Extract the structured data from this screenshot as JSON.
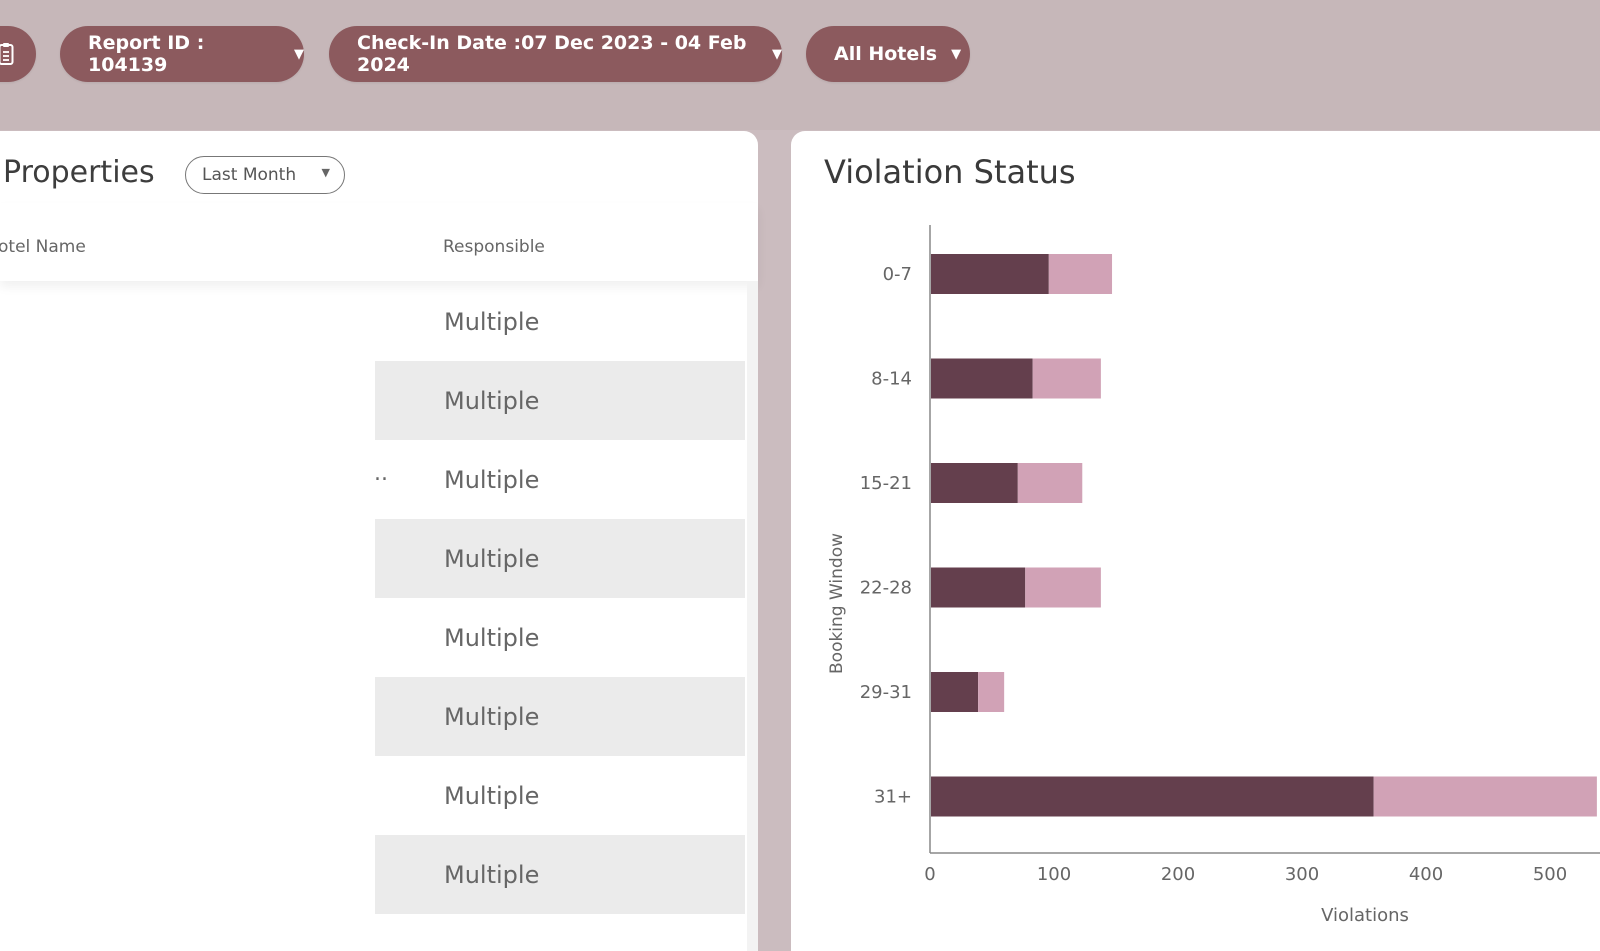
{
  "filters": {
    "report_id": "Report ID : 104139",
    "checkin": "Check-In Date :07 Dec 2023 - 04 Feb 2024",
    "hotels": "All Hotels"
  },
  "properties": {
    "title": "Properties",
    "range": "Last Month",
    "col_hotel": "otel Name",
    "col_responsible": "Responsible",
    "ellipsis": "..",
    "rows": [
      "Multiple",
      "Multiple",
      "Multiple",
      "Multiple",
      "Multiple",
      "Multiple",
      "Multiple",
      "Multiple"
    ]
  },
  "chart_data": {
    "type": "bar",
    "orientation": "horizontal",
    "stacked": true,
    "title": "Violation Status",
    "ylabel": "Booking Window",
    "xlabel": "Violations",
    "categories": [
      "0-7",
      "8-14",
      "15-21",
      "22-28",
      "29-31",
      "31+"
    ],
    "series": [
      {
        "color": "#643f4d",
        "values": [
          95,
          82,
          70,
          76,
          38,
          357
        ]
      },
      {
        "color": "#d1a2b6",
        "values": [
          51,
          55,
          52,
          61,
          21,
          180
        ]
      }
    ],
    "x_ticks": [
      0,
      100,
      200,
      300,
      400,
      500
    ],
    "xlim": [
      0,
      530
    ]
  }
}
